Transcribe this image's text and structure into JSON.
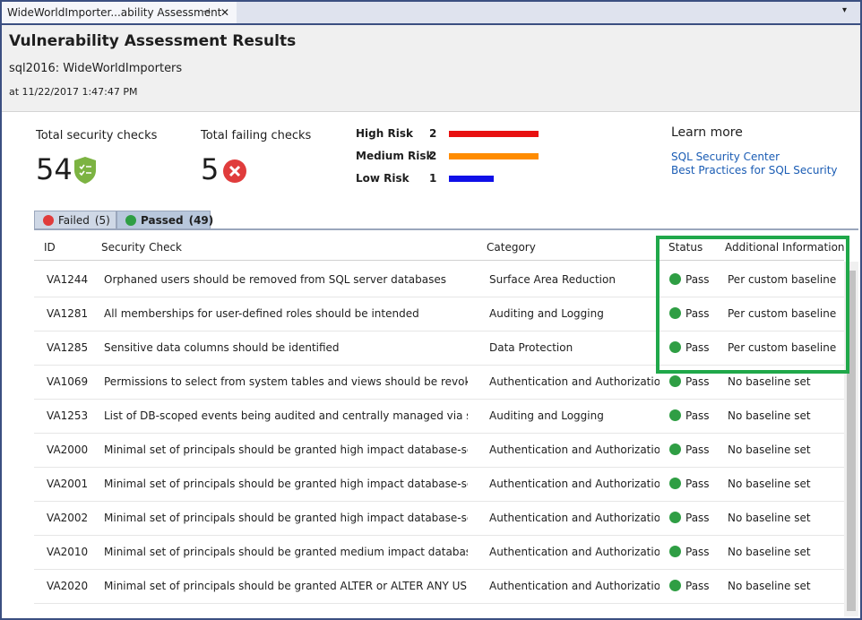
{
  "window": {
    "tab_title": "WideWorldImporter...ability Assessment"
  },
  "header": {
    "title": "Vulnerability Assessment Results",
    "server": "sql2016:  WideWorldImporters",
    "timestamp": "at 11/22/2017 1:47:47 PM"
  },
  "summary": {
    "total_label": "Total security checks",
    "total_value": 54,
    "failing_label": "Total failing checks",
    "failing_value": 5
  },
  "risks": [
    {
      "label": "High Risk",
      "count": 2,
      "color": "#e81010"
    },
    {
      "label": "Medium Risk",
      "count": 2,
      "color": "#ff8c00"
    },
    {
      "label": "Low Risk",
      "count": 1,
      "color": "#1010e8"
    }
  ],
  "learn_more": {
    "title": "Learn more",
    "links": [
      "SQL Security Center",
      "Best Practices for SQL Security"
    ]
  },
  "tabs": [
    {
      "label": "Failed",
      "count": "(5)",
      "active": false
    },
    {
      "label": "Passed",
      "count": "(49)",
      "active": true
    }
  ],
  "table": {
    "columns": [
      "ID",
      "Security Check",
      "Category",
      "Status",
      "Additional Information"
    ],
    "rows": [
      [
        "VA1244",
        "Orphaned users should be removed from SQL server databases",
        "Surface Area Reduction",
        "Pass",
        "Per custom baseline"
      ],
      [
        "VA1281",
        "All memberships for user-defined roles should be intended",
        "Auditing and Logging",
        "Pass",
        "Per custom baseline"
      ],
      [
        "VA1285",
        "Sensitive data columns should be identified",
        "Data Protection",
        "Pass",
        "Per custom baseline"
      ],
      [
        "VA1069",
        "Permissions to select from system tables and views should be revoked from r",
        "Authentication and Authorization",
        "Pass",
        "No baseline set"
      ],
      [
        "VA1253",
        "List of DB-scoped events being audited and centrally managed via server aud",
        "Auditing and Logging",
        "Pass",
        "No baseline set"
      ],
      [
        "VA2000",
        "Minimal set of principals should be granted high impact database-scoped pe",
        "Authentication and Authorization",
        "Pass",
        "No baseline set"
      ],
      [
        "VA2001",
        "Minimal set of principals should be granted high impact database-scoped pe",
        "Authentication and Authorization",
        "Pass",
        "No baseline set"
      ],
      [
        "VA2002",
        "Minimal set of principals should be granted high impact database-scoped pe",
        "Authentication and Authorization",
        "Pass",
        "No baseline set"
      ],
      [
        "VA2010",
        "Minimal set of principals should be granted medium impact database-scope",
        "Authentication and Authorization",
        "Pass",
        "No baseline set"
      ],
      [
        "VA2020",
        "Minimal set of principals should be granted ALTER or ALTER ANY USER datab",
        "Authentication and Authorization",
        "Pass",
        "No baseline set"
      ]
    ]
  }
}
